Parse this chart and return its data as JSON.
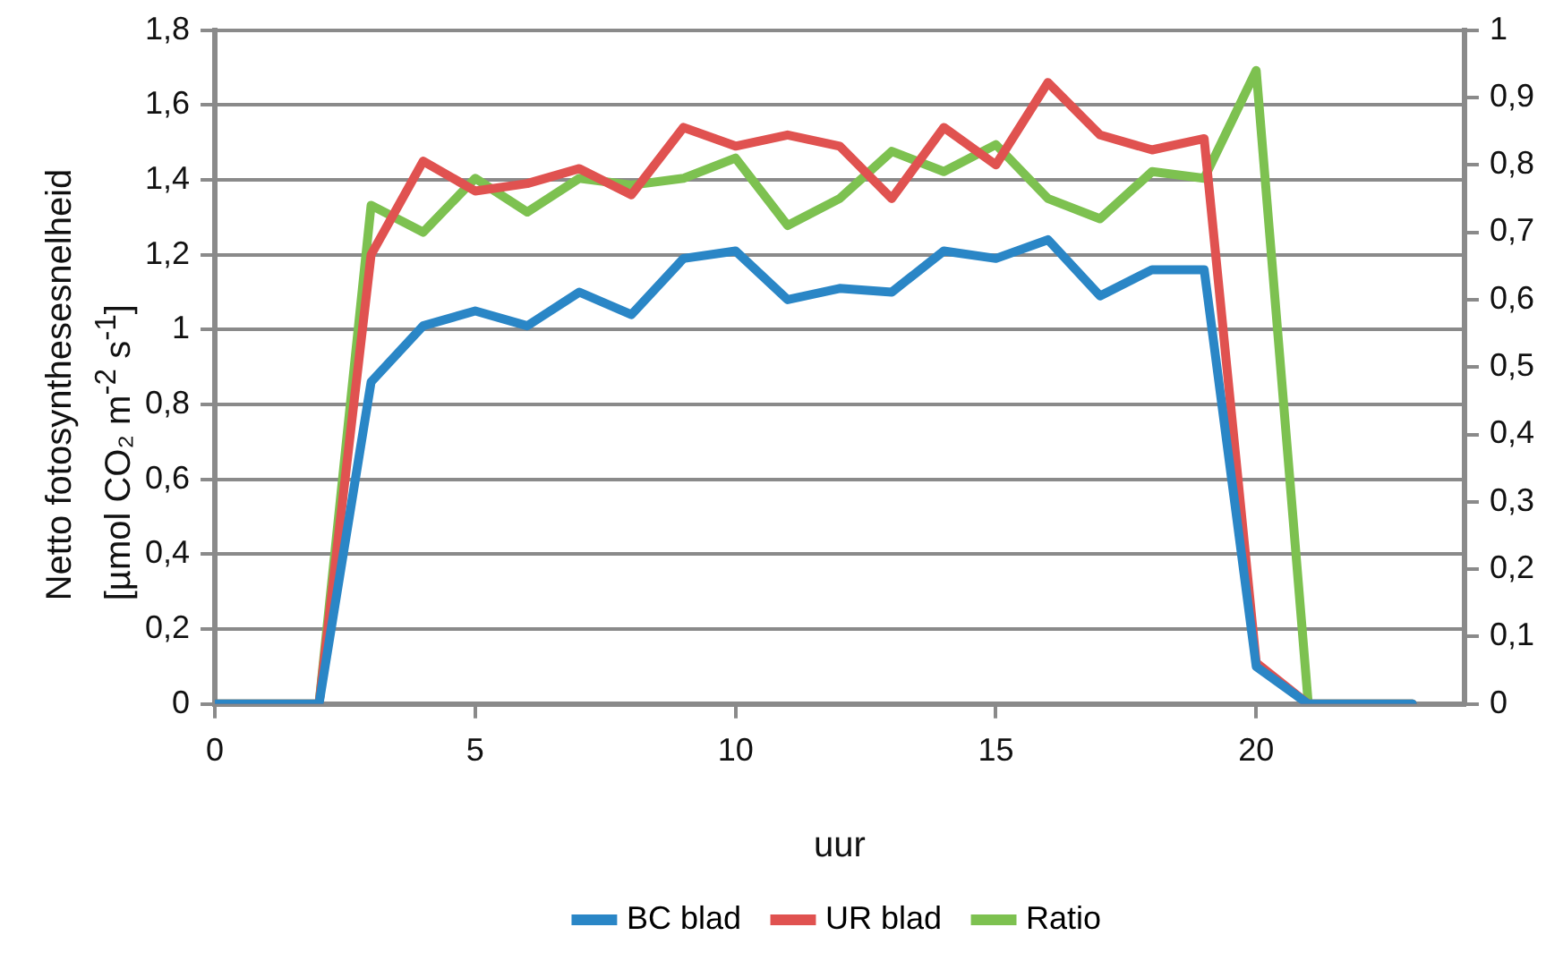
{
  "chart_data": {
    "type": "line",
    "xlabel": "uur",
    "ylabel": "Netto  fotosynthesesnelheid\n[µmol CO₂ m$^{-2}$ s$^{-1}$]",
    "x": [
      0,
      1,
      2,
      3,
      4,
      5,
      6,
      7,
      8,
      9,
      10,
      11,
      12,
      13,
      14,
      15,
      16,
      17,
      18,
      19,
      20,
      21,
      22,
      23
    ],
    "series": [
      {
        "name": "BC blad",
        "color": "#2a86c6",
        "values": [
          0,
          0,
          0,
          0.86,
          1.01,
          1.05,
          1.01,
          1.1,
          1.04,
          1.19,
          1.21,
          1.08,
          1.11,
          1.1,
          1.21,
          1.19,
          1.24,
          1.09,
          1.16,
          1.16,
          0.1,
          0,
          0,
          0
        ]
      },
      {
        "name": "UR blad",
        "color": "#e05250",
        "values": [
          0,
          0,
          0,
          1.2,
          1.45,
          1.37,
          1.39,
          1.43,
          1.36,
          1.54,
          1.49,
          1.52,
          1.49,
          1.35,
          1.54,
          1.44,
          1.66,
          1.52,
          1.48,
          1.51,
          0.11,
          0,
          0,
          0
        ]
      },
      {
        "name": "Ratio",
        "color": "#7dc150",
        "axis": "y2",
        "values": [
          0,
          0,
          0,
          0.74,
          0.7,
          0.78,
          0.73,
          0.78,
          0.77,
          0.78,
          0.81,
          0.71,
          0.75,
          0.82,
          0.79,
          0.83,
          0.75,
          0.72,
          0.79,
          0.78,
          0.94,
          0,
          0,
          0
        ]
      }
    ],
    "xlim": [
      0,
      24
    ],
    "xticks": [
      0,
      5,
      10,
      15,
      20
    ],
    "ylim": [
      0,
      1.8
    ],
    "yticks": [
      0,
      {
        "value": 0.2,
        "label": "0,2"
      },
      {
        "value": 0.4,
        "label": "0,4"
      },
      {
        "value": 0.6,
        "label": "0,6"
      },
      {
        "value": 0.8,
        "label": "0,8"
      },
      1,
      {
        "value": 1.2,
        "label": "1,2"
      },
      {
        "value": 1.4,
        "label": "1,4"
      },
      {
        "value": 1.6,
        "label": "1,6"
      },
      {
        "value": 1.8,
        "label": "1,8"
      }
    ],
    "y2lim": [
      0,
      1
    ],
    "y2ticks": [
      0,
      {
        "value": 0.1,
        "label": "0,1"
      },
      {
        "value": 0.2,
        "label": "0,2"
      },
      {
        "value": 0.3,
        "label": "0,3"
      },
      {
        "value": 0.4,
        "label": "0,4"
      },
      {
        "value": 0.5,
        "label": "0,5"
      },
      {
        "value": 0.6,
        "label": "0,6"
      },
      {
        "value": 0.7,
        "label": "0,7"
      },
      {
        "value": 0.8,
        "label": "0,8"
      },
      {
        "value": 0.9,
        "label": "0,9"
      },
      1
    ],
    "grid": "y",
    "legend": "bottom",
    "marker": "none",
    "line_style": "solid"
  }
}
